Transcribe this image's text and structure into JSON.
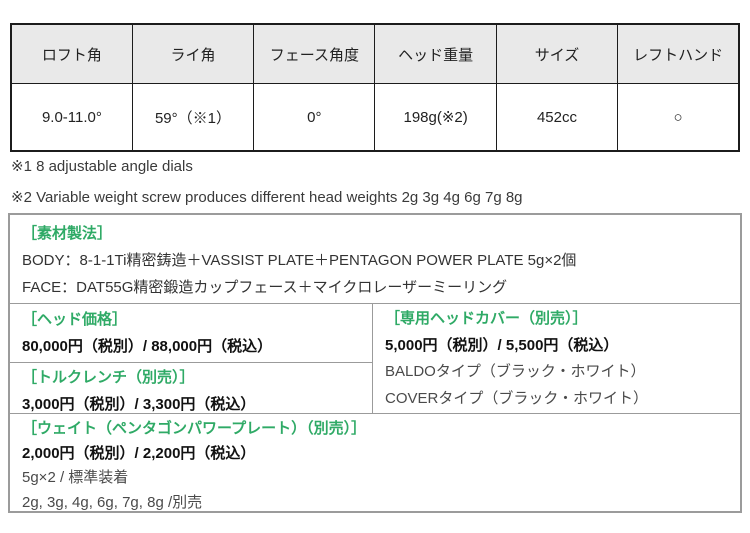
{
  "accent_color": "#2faa66",
  "spec_table": {
    "headers": [
      "ロフト角",
      "ライ角",
      "フェース角度",
      "ヘッド重量",
      "サイズ",
      "レフトハンド"
    ],
    "values": [
      "9.0-11.0°",
      "59°（※1）",
      "0°",
      "198g(※2)",
      "452cc",
      "○"
    ]
  },
  "notes": {
    "note1": "※1 8 adjustable angle dials",
    "note2": "※2 Variable weight screw produces different head weights 2g 3g 4g 6g 7g 8g"
  },
  "info": {
    "material": {
      "title": "［素材製法］",
      "body_line": "BODY：8-1-1Ti精密鋳造＋VASSIST PLATE＋PENTAGON POWER PLATE 5g×2個",
      "face_line": "FACE：DAT55G精密鍛造カップフェース＋マイクロレーザーミーリング"
    },
    "head_price": {
      "title": "［ヘッド価格］",
      "price": "80,000円（税別）/ 88,000円（税込）"
    },
    "head_cover": {
      "title": "［専用ヘッドカバー（別売）］",
      "price": "5,000円（税別）/ 5,500円（税込）",
      "type1": "BALDOタイプ（ブラック・ホワイト）",
      "type2": "COVERタイプ（ブラック・ホワイト）"
    },
    "torque_wrench": {
      "title": "［トルクレンチ（別売）］",
      "price": "3,000円（税別）/ 3,300円（税込）"
    },
    "weight": {
      "title": "［ウェイト（ペンタゴンパワープレート）（別売）］",
      "price": "2,000円（税別）/ 2,200円（税込）",
      "standard": "5g×2 / 標準装着",
      "optional": "2g, 3g, 4g, 6g, 7g, 8g /別売"
    }
  }
}
